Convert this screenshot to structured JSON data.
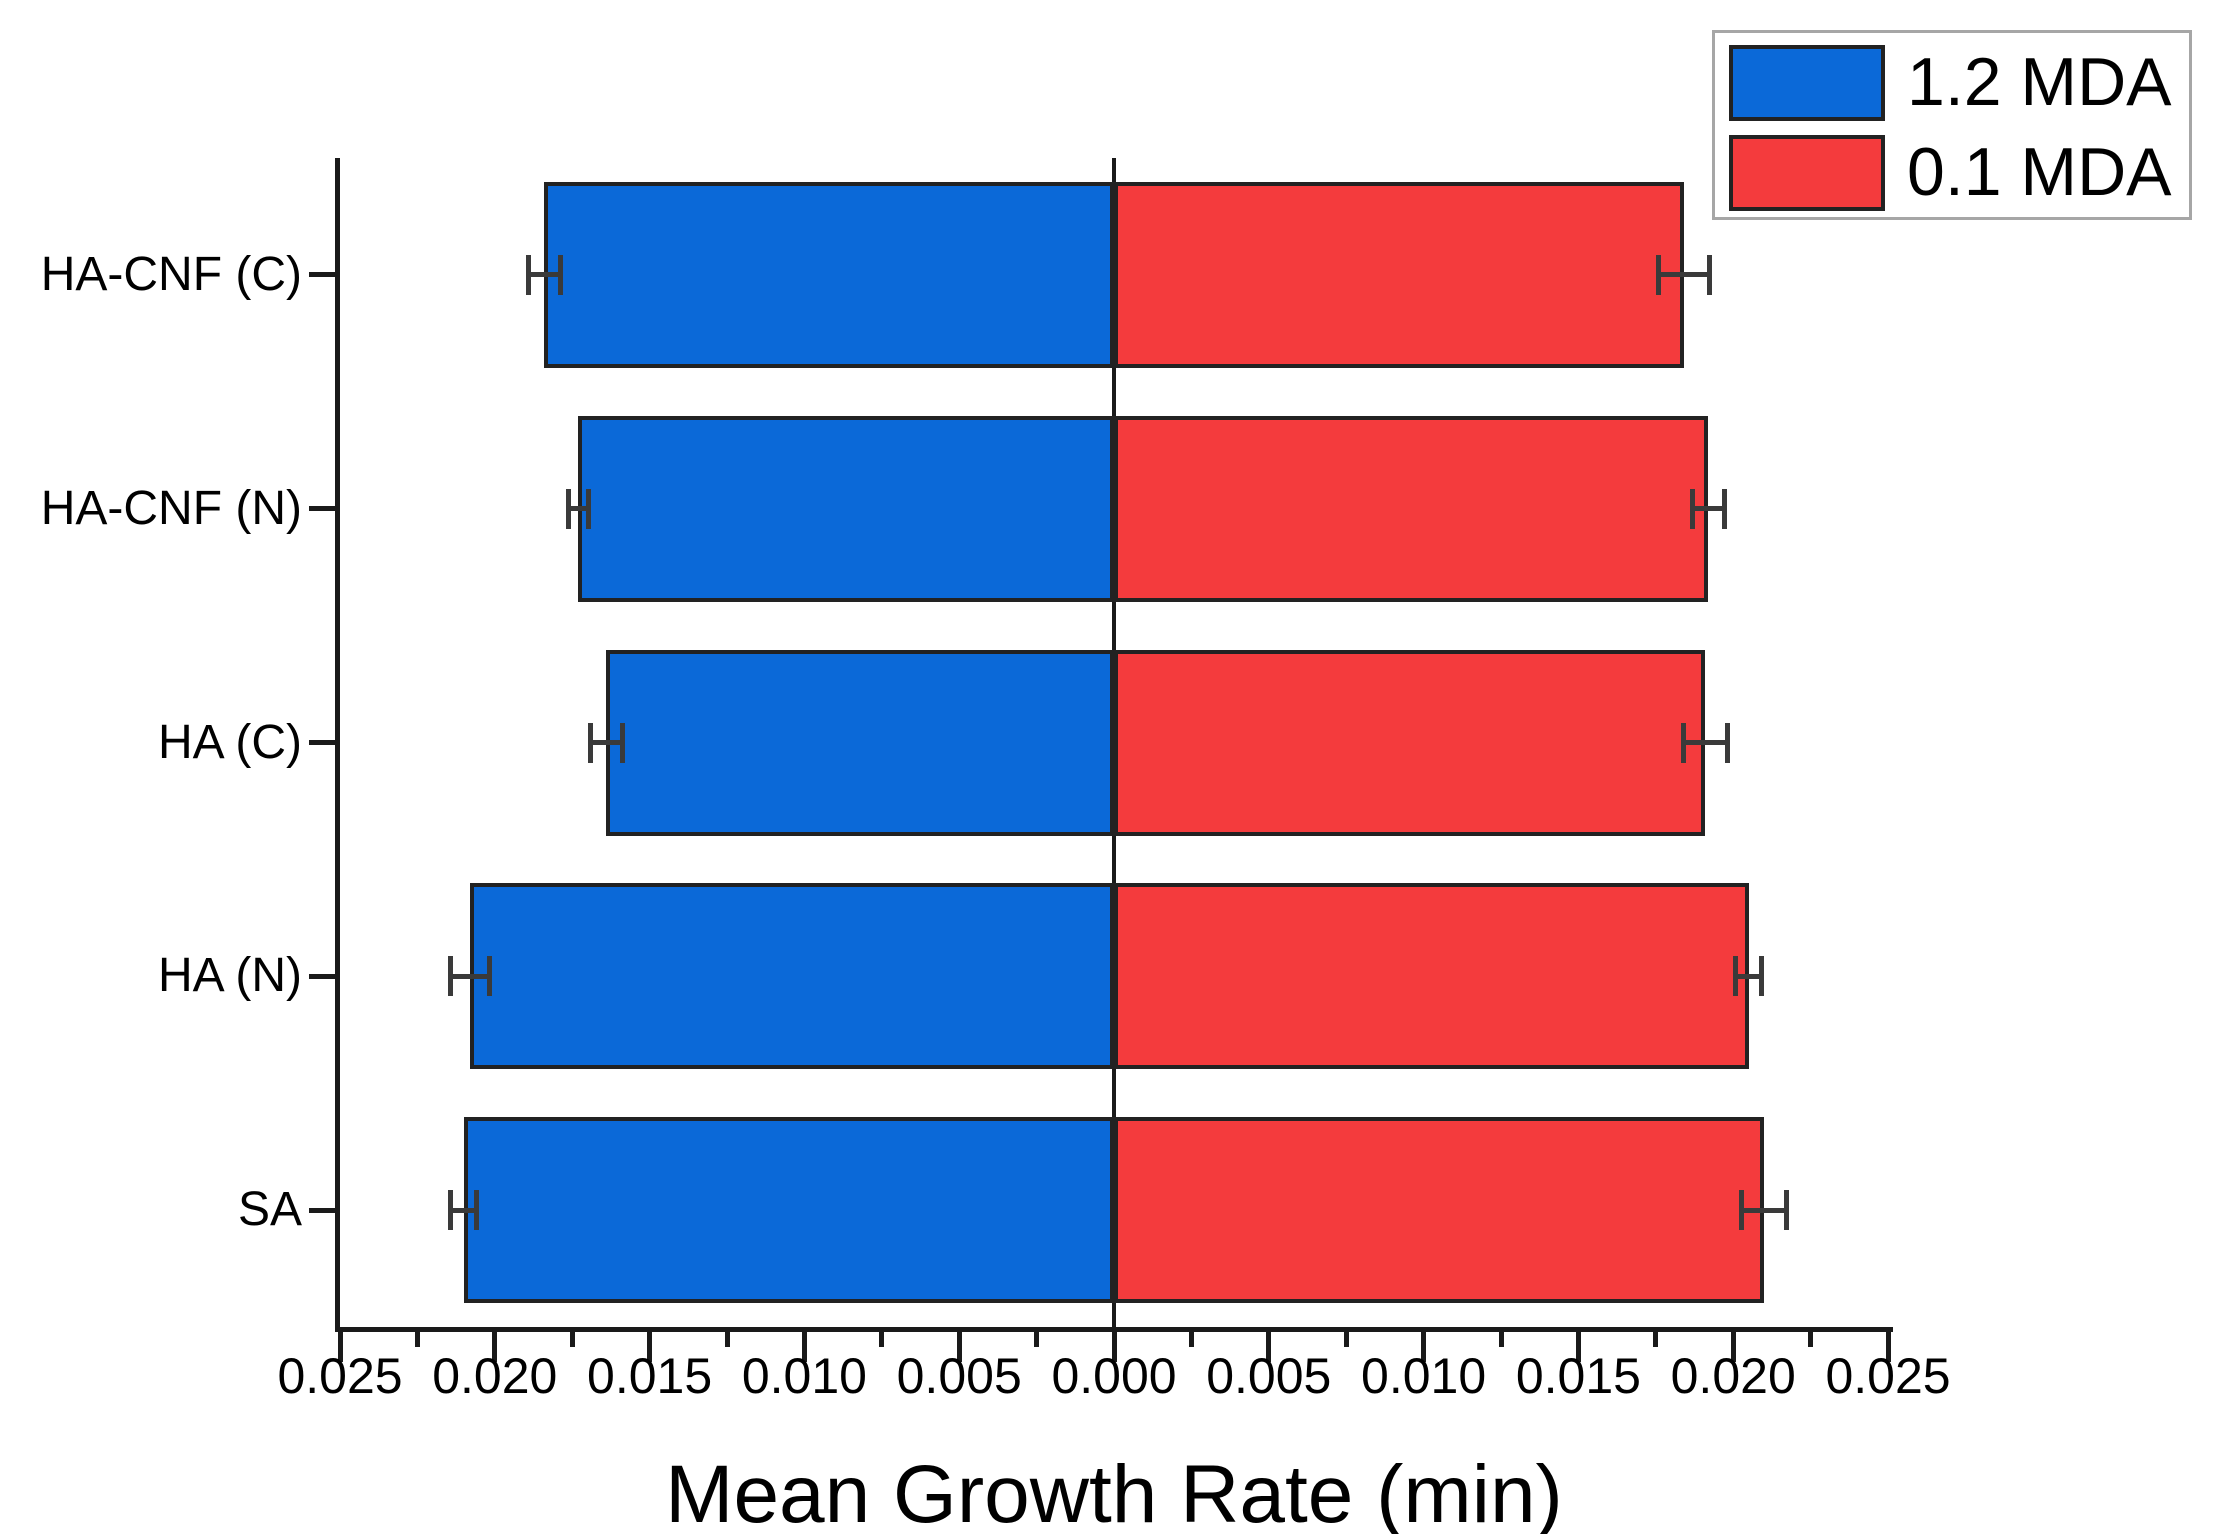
{
  "figure": {
    "background": "#ffffff"
  },
  "legend": {
    "position": "top-right",
    "border_color": "#a6a6a6"
  },
  "chart_data": {
    "type": "bar",
    "orientation": "horizontal-diverging",
    "title": "",
    "xlabel": "Mean Growth Rate (min)",
    "ylabel": "",
    "categories": [
      "HA-CNF (C)",
      "HA-CNF (N)",
      "HA (C)",
      "HA (N)",
      "SA"
    ],
    "categories_order_note": "listed top to bottom",
    "series": [
      {
        "name": "1.2 MDA",
        "side": "left",
        "color": "#0b69d8",
        "values": [
          0.0184,
          0.0173,
          0.0164,
          0.0208,
          0.021
        ],
        "errors": [
          0.0006,
          0.0004,
          0.0006,
          0.0007,
          0.0005
        ]
      },
      {
        "name": "0.1 MDA",
        "side": "right",
        "color": "#f43b3d",
        "values": [
          0.0184,
          0.0192,
          0.0191,
          0.0205,
          0.021
        ],
        "errors": [
          0.0009,
          0.0006,
          0.0008,
          0.0005,
          0.0008
        ]
      }
    ],
    "xlim": [
      -0.025,
      0.025
    ],
    "x_tick_step": 0.005,
    "x_minor_tick_step": 0.0025,
    "x_tick_labels": [
      "0.025",
      "0.020",
      "0.015",
      "0.010",
      "0.005",
      "0.000",
      "0.005",
      "0.010",
      "0.015",
      "0.020",
      "0.025"
    ],
    "grid": false,
    "zero_line": true,
    "legend_position": "top-right"
  },
  "colors": {
    "axis": "#1a1a1a",
    "error_bar": "#3a3a3a",
    "bar_border": "#222222",
    "text": "#000000"
  }
}
